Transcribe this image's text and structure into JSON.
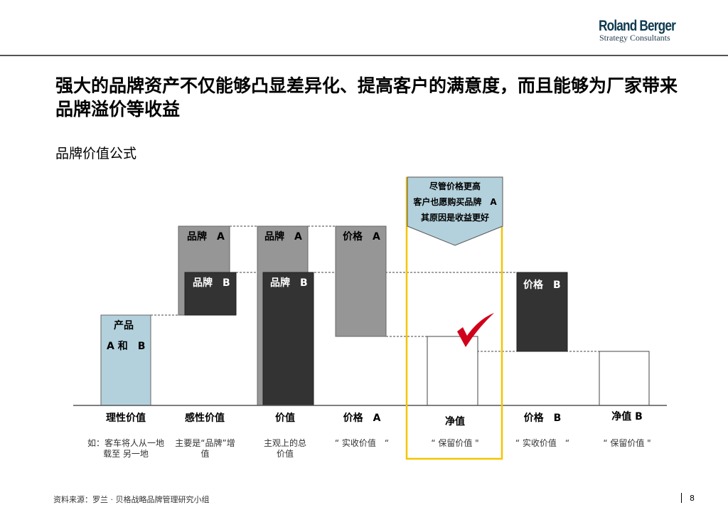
{
  "logo": {
    "name": "Roland Berger",
    "tagline": "Strategy Consultants"
  },
  "title": "强大的品牌资产不仅能够凸显差异化、提高客户的满意度，而且能够为厂家带来品牌溢价等收益",
  "subtitle": "品牌价值公式",
  "diagram": {
    "bars": {
      "product_line1": "产品",
      "product_line2": "A 和　B",
      "brand_a_1": "品牌　A",
      "brand_b_1": "品牌　B",
      "brand_a_2": "品牌　A",
      "brand_b_2": "品牌　B",
      "price_a": "价格　A",
      "price_b": "价格　B"
    },
    "callout": {
      "line1": "尽管价格更高",
      "line2": "客户也愿购买品牌　A",
      "line3": "其原因是收益更好"
    },
    "columns": [
      {
        "label": "理性价值",
        "note": "如：客车将人从一地载至 另一地"
      },
      {
        "label": "感性价值",
        "note": "主要是“品牌”增值"
      },
      {
        "label": "价值",
        "note": "主观上的总价值"
      },
      {
        "label": "价格　A",
        "note": "“ 实收价值　“"
      },
      {
        "label": "净值",
        "note": "“ 保留价值 \""
      },
      {
        "label": "价格　B",
        "note": "“ 实收价值　“"
      },
      {
        "label": "净值 B",
        "note": "“ 保留价值 \""
      }
    ],
    "colors": {
      "product": "#b3d1dc",
      "brand_a": "#969696",
      "brand_b": "#333333",
      "highlight": "#f5c400",
      "check": "#d0021b"
    }
  },
  "footer": {
    "source": "资料来源：罗兰 · 贝格战略品牌管理研究小组",
    "page": "8"
  }
}
